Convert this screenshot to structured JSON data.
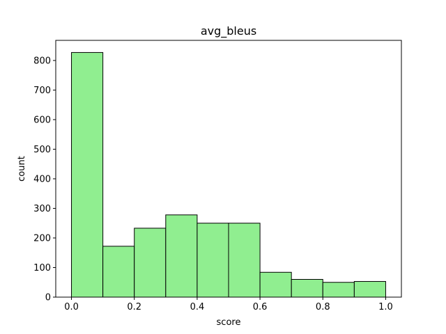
{
  "chart_data": {
    "type": "bar",
    "title": "avg_bleus",
    "xlabel": "score",
    "ylabel": "count",
    "bins": [
      {
        "start": 0.0,
        "end": 0.1,
        "count": 827
      },
      {
        "start": 0.1,
        "end": 0.2,
        "count": 172
      },
      {
        "start": 0.2,
        "end": 0.3,
        "count": 233
      },
      {
        "start": 0.3,
        "end": 0.4,
        "count": 278
      },
      {
        "start": 0.4,
        "end": 0.5,
        "count": 250
      },
      {
        "start": 0.5,
        "end": 0.6,
        "count": 250
      },
      {
        "start": 0.6,
        "end": 0.7,
        "count": 84
      },
      {
        "start": 0.7,
        "end": 0.8,
        "count": 60
      },
      {
        "start": 0.8,
        "end": 0.9,
        "count": 50
      },
      {
        "start": 0.9,
        "end": 1.0,
        "count": 53
      }
    ],
    "xlim": [
      -0.05,
      1.05
    ],
    "ylim": [
      0,
      868
    ],
    "xticks": [
      "0.0",
      "0.2",
      "0.4",
      "0.6",
      "0.8",
      "1.0"
    ],
    "yticks": [
      "0",
      "100",
      "200",
      "300",
      "400",
      "500",
      "600",
      "700",
      "800"
    ],
    "bar_color": "#90ee90",
    "edge_color": "#000000",
    "grid": false,
    "legend": "none"
  }
}
